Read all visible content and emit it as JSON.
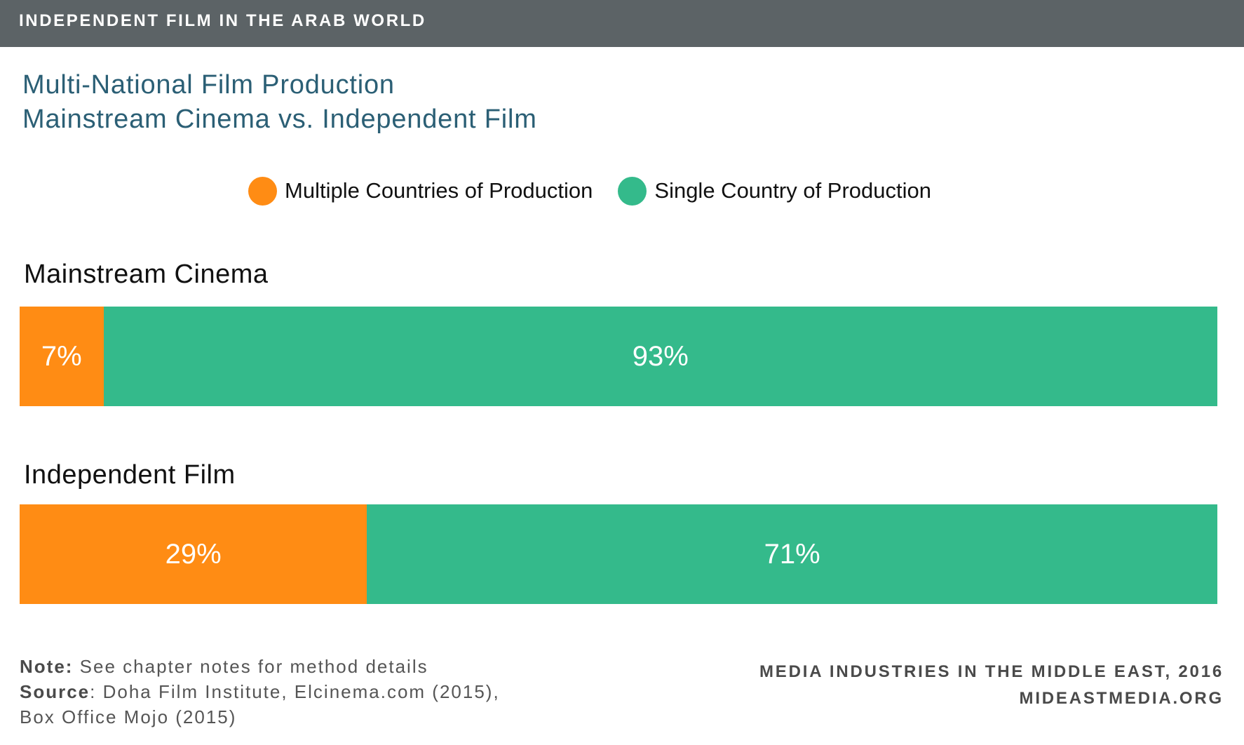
{
  "header": {
    "label": "INDEPENDENT FILM IN THE ARAB WORLD"
  },
  "title": {
    "line1": "Multi-National Film Production",
    "line2": "Mainstream Cinema vs. Independent Film"
  },
  "colors": {
    "multiple": "#ff8c14",
    "single": "#34ba8b",
    "header_bg": "#5c6366",
    "title": "#2b5f75"
  },
  "chart_data": {
    "type": "bar",
    "stacked": true,
    "orientation": "horizontal",
    "unit": "%",
    "categories": [
      "Mainstream Cinema",
      "Independent Film"
    ],
    "series": [
      {
        "name": "Multiple Countries of Production",
        "color": "#ff8c14",
        "values": [
          7,
          29
        ],
        "labels": [
          "7%",
          "29%"
        ]
      },
      {
        "name": "Single Country of Production",
        "color": "#34ba8b",
        "values": [
          93,
          71
        ],
        "labels": [
          "93%",
          "71%"
        ]
      }
    ],
    "xlim": [
      0,
      100
    ],
    "legend_position": "top-center"
  },
  "footer": {
    "note_label": "Note:",
    "note_text": "See chapter notes for method details",
    "source_label": "Source",
    "source_text": ": Doha Film Institute, Elcinema.com (2015), Box Office Mojo (2015)",
    "credit_line1": "MEDIA INDUSTRIES IN THE MIDDLE EAST, 2016",
    "credit_line2": "MIDEASTMEDIA.ORG"
  }
}
